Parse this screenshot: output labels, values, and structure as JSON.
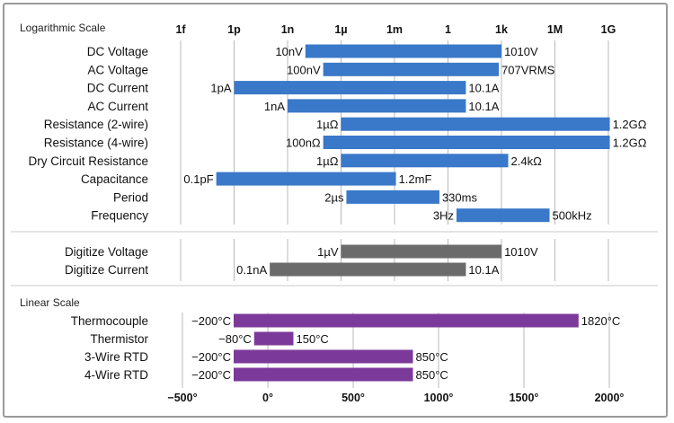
{
  "chart_data": [
    {
      "type": "bar",
      "subtype": "floating-range",
      "scale": "log",
      "title": "Logarithmic Scale",
      "ticks": [
        "1f",
        "1p",
        "1n",
        "1µ",
        "1m",
        "1",
        "1k",
        "1M",
        "1G"
      ],
      "tick_exponents": [
        -15,
        -12,
        -9,
        -6,
        -3,
        0,
        3,
        6,
        9
      ],
      "grid": true,
      "groups": [
        {
          "color": "#3a78c9",
          "rows": [
            {
              "label": "DC Voltage",
              "min": 1e-08,
              "max": 1010,
              "min_label": "10nV",
              "max_label": "1010V"
            },
            {
              "label": "AC Voltage",
              "min": 1e-07,
              "max": 707,
              "min_label": "100nV",
              "max_label": "707VRMS"
            },
            {
              "label": "DC Current",
              "min": 1e-12,
              "max": 10.1,
              "min_label": "1pA",
              "max_label": "10.1A"
            },
            {
              "label": "AC Current",
              "min": 1e-09,
              "max": 10.1,
              "min_label": "1nA",
              "max_label": "10.1A"
            },
            {
              "label": "Resistance (2-wire)",
              "min": 1e-06,
              "max": 1200000000.0,
              "min_label": "1µΩ",
              "max_label": "1.2GΩ"
            },
            {
              "label": "Resistance (4-wire)",
              "min": 1e-07,
              "max": 1200000000.0,
              "min_label": "100nΩ",
              "max_label": "1.2GΩ"
            },
            {
              "label": "Dry Circuit Resistance",
              "min": 1e-06,
              "max": 2400,
              "min_label": "1µΩ",
              "max_label": "2.4kΩ"
            },
            {
              "label": "Capacitance",
              "min": 1e-13,
              "max": 0.0012,
              "min_label": "0.1pF",
              "max_label": "1.2mF"
            },
            {
              "label": "Period",
              "min": 2e-06,
              "max": 0.33,
              "min_label": "2µs",
              "max_label": "330ms"
            },
            {
              "label": "Frequency",
              "min": 3,
              "max": 500000,
              "min_label": "3Hz",
              "max_label": "500kHz"
            }
          ]
        },
        {
          "color": "#6b6b6b",
          "rows": [
            {
              "label": "Digitize Voltage",
              "min": 1e-06,
              "max": 1010,
              "min_label": "1µV",
              "max_label": "1010V"
            },
            {
              "label": "Digitize Current",
              "min": 1e-10,
              "max": 10.1,
              "min_label": "0.1nA",
              "max_label": "10.1A"
            }
          ]
        }
      ]
    },
    {
      "type": "bar",
      "subtype": "floating-range",
      "scale": "linear",
      "title": "Linear Scale",
      "ticks": [
        "−500°",
        "0°",
        "500°",
        "1000°",
        "1500°",
        "2000°"
      ],
      "tick_values": [
        -500,
        0,
        500,
        1000,
        1500,
        2000
      ],
      "xlim": [
        -500,
        2000
      ],
      "grid": true,
      "color": "#7b3a9a",
      "rows": [
        {
          "label": "Thermocouple",
          "min": -200,
          "max": 1820,
          "min_label": "−200°C",
          "max_label": "1820°C"
        },
        {
          "label": "Thermistor",
          "min": -80,
          "max": 150,
          "min_label": "−80°C",
          "max_label": "150°C"
        },
        {
          "label": "3-Wire RTD",
          "min": -200,
          "max": 850,
          "min_label": "−200°C",
          "max_label": "850°C"
        },
        {
          "label": "4-Wire RTD",
          "min": -200,
          "max": 850,
          "min_label": "−200°C",
          "max_label": "850°C"
        }
      ]
    }
  ]
}
